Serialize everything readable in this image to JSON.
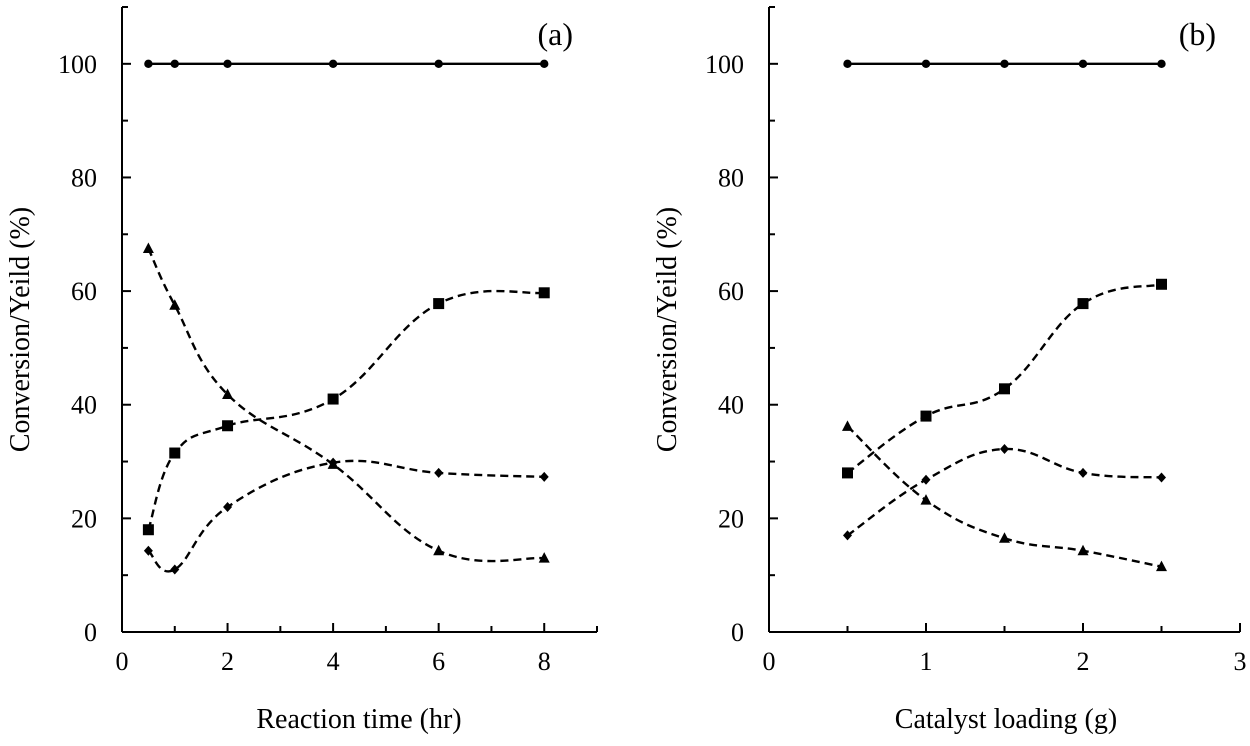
{
  "chart_data": [
    {
      "type": "line",
      "panel_label": "(a)",
      "xlabel": "Reaction time (hr)",
      "ylabel": "Conversion/Yeild (%)",
      "xlim": [
        0,
        9
      ],
      "ylim": [
        0,
        110
      ],
      "xticks": [
        0,
        2,
        4,
        6,
        8
      ],
      "yticks": [
        0,
        20,
        40,
        60,
        80,
        100
      ],
      "series": [
        {
          "name": "circle",
          "marker": "circle",
          "dashed": false,
          "x": [
            0.5,
            1,
            2,
            4,
            6,
            8
          ],
          "y": [
            100,
            100,
            100,
            100,
            100,
            100
          ]
        },
        {
          "name": "square",
          "marker": "square",
          "dashed": true,
          "x": [
            0.5,
            1,
            2,
            4,
            6,
            8
          ],
          "y": [
            18,
            31.5,
            36.3,
            41,
            57.8,
            59.7
          ]
        },
        {
          "name": "triangle",
          "marker": "triangle",
          "dashed": true,
          "x": [
            0.5,
            1,
            2,
            4,
            6,
            8
          ],
          "y": [
            67.5,
            57.5,
            41.8,
            29.5,
            14.3,
            13
          ]
        },
        {
          "name": "diamond",
          "marker": "diamond",
          "dashed": true,
          "x": [
            0.5,
            1,
            2,
            4,
            6,
            8
          ],
          "y": [
            14.3,
            11,
            22,
            29.8,
            28,
            27.3
          ]
        }
      ]
    },
    {
      "type": "line",
      "panel_label": "(b)",
      "xlabel": "Catalyst loading (g)",
      "ylabel": "Conversion/Yeild (%)",
      "xlim": [
        0,
        3
      ],
      "ylim": [
        0,
        110
      ],
      "xticks": [
        0,
        1,
        2,
        3
      ],
      "yticks": [
        0,
        20,
        40,
        60,
        80,
        100
      ],
      "series": [
        {
          "name": "circle",
          "marker": "circle",
          "dashed": false,
          "x": [
            0.5,
            1,
            1.5,
            2,
            2.5
          ],
          "y": [
            100,
            100,
            100,
            100,
            100
          ]
        },
        {
          "name": "square",
          "marker": "square",
          "dashed": true,
          "x": [
            0.5,
            1,
            1.5,
            2,
            2.5
          ],
          "y": [
            28,
            38,
            42.8,
            57.8,
            61.2
          ]
        },
        {
          "name": "triangle",
          "marker": "triangle",
          "dashed": true,
          "x": [
            0.5,
            1,
            1.5,
            2,
            2.5
          ],
          "y": [
            36.2,
            23.2,
            16.5,
            14.3,
            11.5
          ]
        },
        {
          "name": "diamond",
          "marker": "diamond",
          "dashed": true,
          "x": [
            0.5,
            1,
            1.5,
            2,
            2.5
          ],
          "y": [
            17,
            26.8,
            32.2,
            28,
            27.2
          ]
        }
      ]
    }
  ]
}
